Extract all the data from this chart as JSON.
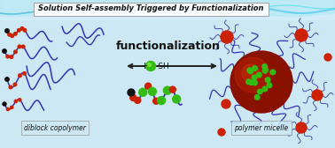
{
  "title": "Solution Self-assembly Triggered by Functionalization",
  "label_functionalization": "functionalization",
  "label_diblock": "diblock copolymer",
  "label_micelle": "polymer micelle",
  "bg_color": "#cce8f4",
  "bg_top_color": "#ddf0f8",
  "red_bead": "#cc2200",
  "green_bead": "#33bb11",
  "black_bead": "#111111",
  "chain_color": "#3333bb",
  "micelle_core": "#881100",
  "micelle_highlight": "#cc3322",
  "wave_color1": "#88ccdd",
  "wave_color2": "#aaddee",
  "cyan_accent": "#00bbdd",
  "arrow_color": "#222222",
  "text_dark": "#111111",
  "box_edge": "#999999",
  "box_face": "#ffffff"
}
